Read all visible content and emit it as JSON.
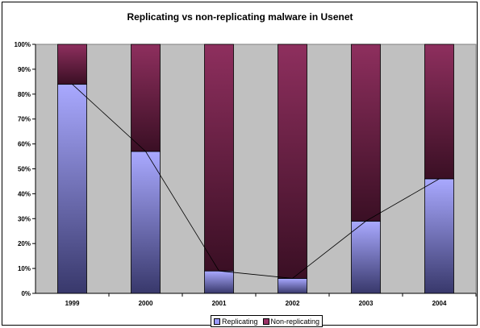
{
  "chart_data": {
    "type": "bar",
    "stacked": true,
    "percent": true,
    "title": "Replicating vs non-replicating malware in Usenet",
    "categories": [
      "1999",
      "2000",
      "2001",
      "2002",
      "2003",
      "2004"
    ],
    "series": [
      {
        "name": "Replicating",
        "values": [
          84,
          57,
          9,
          6,
          29,
          46
        ],
        "color": "#9999ff"
      },
      {
        "name": "Non-replicating",
        "values": [
          16,
          43,
          91,
          94,
          71,
          54
        ],
        "color": "#993366"
      }
    ],
    "trend_line": {
      "series": "Replicating"
    },
    "ylim": [
      0,
      100
    ],
    "yticks": [
      "0%",
      "10%",
      "20%",
      "30%",
      "40%",
      "50%",
      "60%",
      "70%",
      "80%",
      "90%",
      "100%"
    ],
    "plot_background": "#c0c0c0",
    "grid": false,
    "legend_position": "bottom"
  }
}
